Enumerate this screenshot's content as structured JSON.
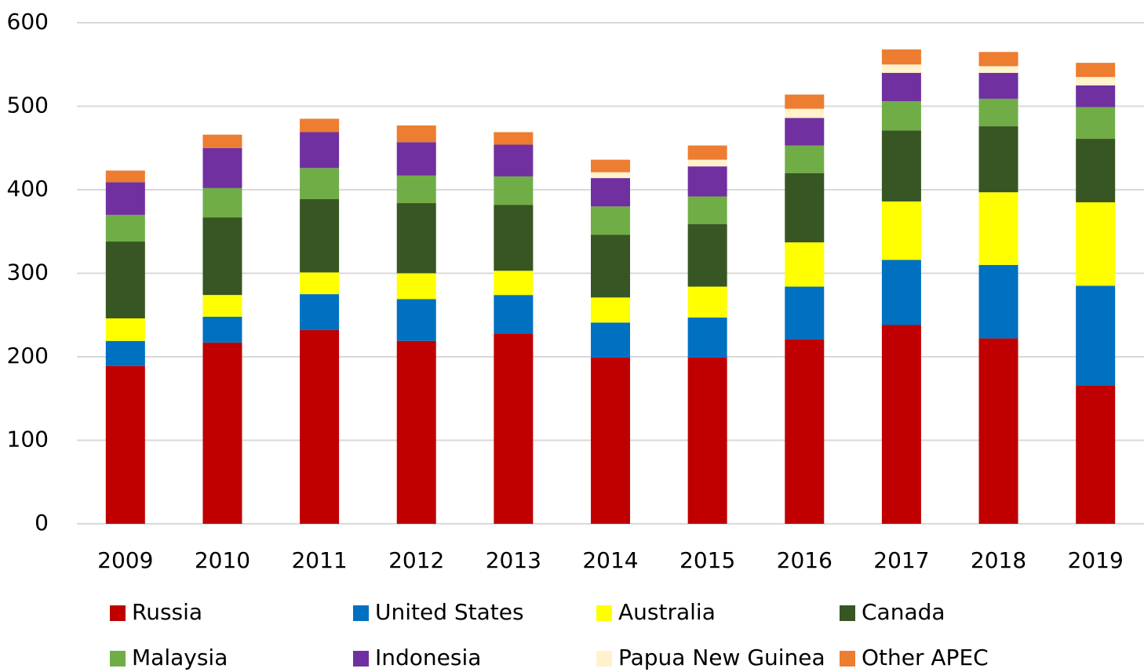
{
  "chart_data": {
    "type": "stacked_bar",
    "categories": [
      "2009",
      "2010",
      "2011",
      "2012",
      "2013",
      "2014",
      "2015",
      "2016",
      "2017",
      "2018",
      "2019"
    ],
    "series": [
      {
        "name": "Russia",
        "color": "#c00000",
        "values": [
          189,
          217,
          232,
          219,
          228,
          199,
          199,
          221,
          238,
          222,
          166
        ]
      },
      {
        "name": "United States",
        "color": "#0070c0",
        "values": [
          30,
          31,
          43,
          50,
          46,
          42,
          48,
          63,
          78,
          88,
          119
        ]
      },
      {
        "name": "Australia",
        "color": "#ffff00",
        "values": [
          27,
          26,
          26,
          31,
          29,
          30,
          37,
          53,
          70,
          87,
          100
        ]
      },
      {
        "name": "Canada",
        "color": "#375623",
        "values": [
          92,
          93,
          88,
          84,
          79,
          75,
          75,
          83,
          85,
          79,
          76
        ]
      },
      {
        "name": "Malaysia",
        "color": "#70ad47",
        "values": [
          32,
          35,
          37,
          33,
          34,
          34,
          33,
          33,
          35,
          33,
          38
        ]
      },
      {
        "name": "Indonesia",
        "color": "#7030a0",
        "values": [
          39,
          48,
          43,
          40,
          38,
          34,
          36,
          33,
          34,
          31,
          26
        ]
      },
      {
        "name": "Papua New Guinea",
        "color": "#fff2cc",
        "values": [
          0,
          0,
          0,
          0,
          0,
          7,
          8,
          11,
          10,
          8,
          10
        ]
      },
      {
        "name": "Other APEC",
        "color": "#ed7d31",
        "values": [
          14,
          16,
          16,
          20,
          15,
          15,
          17,
          17,
          18,
          17,
          17
        ]
      }
    ],
    "ylim": [
      0,
      600
    ],
    "yticks": [
      0,
      100,
      200,
      300,
      400,
      500,
      600
    ],
    "grid": true
  }
}
